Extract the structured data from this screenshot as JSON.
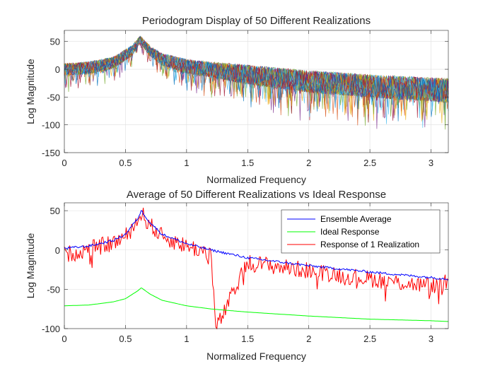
{
  "chart_data": [
    {
      "type": "line",
      "title": "Periodogram Display of 50 Different Realizations",
      "xlabel": "Normalized Frequency",
      "ylabel": "Log Magnitude",
      "xlim": [
        0,
        3.1416
      ],
      "ylim": [
        -150,
        70
      ],
      "xticks": [
        "0",
        "0.5",
        "1",
        "1.5",
        "2",
        "2.5",
        "3"
      ],
      "yticks": [
        "-150",
        "-100",
        "-50",
        "0",
        "50"
      ],
      "grid": true,
      "series_count": 50,
      "series_colors": [
        "#0072bd",
        "#d95319",
        "#edb120",
        "#7e2f8e",
        "#77ac30",
        "#4dbeee",
        "#a2142f"
      ],
      "envelope": {
        "x": [
          0,
          0.2,
          0.4,
          0.55,
          0.62,
          0.7,
          0.8,
          1.0,
          1.2,
          1.5,
          2.0,
          2.5,
          3.0,
          3.1416
        ],
        "mean": [
          2,
          5,
          14,
          35,
          55,
          35,
          20,
          8,
          2,
          -6,
          -18,
          -26,
          -32,
          -34
        ],
        "spread": [
          14,
          14,
          13,
          12,
          8,
          12,
          14,
          16,
          18,
          22,
          25,
          26,
          27,
          28
        ]
      }
    },
    {
      "type": "line",
      "title": "Average of 50 Different Realizations vs Ideal Response",
      "xlabel": "Normalized Frequency",
      "ylabel": "Log Magnitude",
      "xlim": [
        0,
        3.1416
      ],
      "ylim": [
        -100,
        60
      ],
      "xticks": [
        "0",
        "0.5",
        "1",
        "1.5",
        "2",
        "2.5",
        "3"
      ],
      "yticks": [
        "-100",
        "-50",
        "0",
        "50"
      ],
      "grid": true,
      "legend": "top-right",
      "series": [
        {
          "name": "Ensemble Average",
          "color": "#0000ff",
          "x": [
            0,
            0.2,
            0.4,
            0.5,
            0.6,
            0.63,
            0.7,
            0.8,
            1.0,
            1.2,
            1.5,
            2.0,
            2.5,
            3.0,
            3.1416
          ],
          "values": [
            2,
            5,
            12,
            20,
            40,
            50,
            35,
            20,
            8,
            0,
            -10,
            -20,
            -28,
            -35,
            -37
          ]
        },
        {
          "name": "Ideal Response",
          "color": "#00ff00",
          "x": [
            0,
            0.2,
            0.4,
            0.5,
            0.6,
            0.63,
            0.7,
            0.8,
            1.0,
            1.2,
            1.5,
            2.0,
            2.5,
            3.0,
            3.1416
          ],
          "values": [
            -71,
            -70,
            -66,
            -62,
            -52,
            -48,
            -56,
            -64,
            -71,
            -75,
            -79,
            -84,
            -88,
            -90,
            -91
          ]
        },
        {
          "name": "Response of 1 Realization",
          "color": "#ff0000",
          "x": [
            0,
            0.2,
            0.4,
            0.5,
            0.6,
            0.63,
            0.7,
            0.8,
            1.0,
            1.2,
            1.24,
            1.5,
            2.0,
            2.47,
            3.0,
            3.1416
          ],
          "values": [
            -5,
            2,
            10,
            18,
            38,
            48,
            33,
            18,
            6,
            -3,
            -100,
            -15,
            -25,
            -35,
            -45,
            -40
          ]
        }
      ]
    }
  ]
}
